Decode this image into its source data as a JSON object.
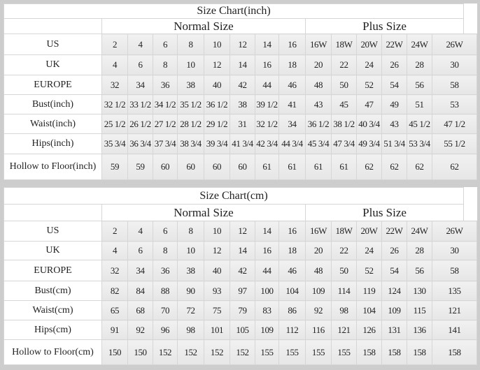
{
  "tables": [
    {
      "title": "Size Chart(inch)",
      "normal_label": "Normal Size",
      "plus_label": "Plus Size",
      "rows": [
        {
          "label": "US",
          "values": [
            "2",
            "4",
            "6",
            "8",
            "10",
            "12",
            "14",
            "16",
            "16W",
            "18W",
            "20W",
            "22W",
            "24W",
            "26W"
          ]
        },
        {
          "label": "UK",
          "values": [
            "4",
            "6",
            "8",
            "10",
            "12",
            "14",
            "16",
            "18",
            "20",
            "22",
            "24",
            "26",
            "28",
            "30"
          ]
        },
        {
          "label": "EUROPE",
          "values": [
            "32",
            "34",
            "36",
            "38",
            "40",
            "42",
            "44",
            "46",
            "48",
            "50",
            "52",
            "54",
            "56",
            "58"
          ]
        },
        {
          "label": "Bust(inch)",
          "values": [
            "32 1/2",
            "33 1/2",
            "34 1/2",
            "35 1/2",
            "36 1/2",
            "38",
            "39 1/2",
            "41",
            "43",
            "45",
            "47",
            "49",
            "51",
            "53"
          ]
        },
        {
          "label": "Waist(inch)",
          "values": [
            "25 1/2",
            "26 1/2",
            "27 1/2",
            "28 1/2",
            "29 1/2",
            "31",
            "32 1/2",
            "34",
            "36 1/2",
            "38 1/2",
            "40 3/4",
            "43",
            "45 1/2",
            "47 1/2"
          ]
        },
        {
          "label": "Hips(inch)",
          "values": [
            "35 3/4",
            "36 3/4",
            "37 3/4",
            "38 3/4",
            "39 3/4",
            "41 3/4",
            "42 3/4",
            "44 3/4",
            "45 3/4",
            "47 3/4",
            "49 3/4",
            "51 3/4",
            "53 3/4",
            "55 1/2"
          ]
        },
        {
          "label": "Hollow to Floor(inch)",
          "values": [
            "59",
            "59",
            "60",
            "60",
            "60",
            "60",
            "61",
            "61",
            "61",
            "61",
            "62",
            "62",
            "62",
            "62"
          ]
        }
      ]
    },
    {
      "title": "Size Chart(cm)",
      "normal_label": "Normal Size",
      "plus_label": "Plus Size",
      "rows": [
        {
          "label": "US",
          "values": [
            "2",
            "4",
            "6",
            "8",
            "10",
            "12",
            "14",
            "16",
            "16W",
            "18W",
            "20W",
            "22W",
            "24W",
            "26W"
          ]
        },
        {
          "label": "UK",
          "values": [
            "4",
            "6",
            "8",
            "10",
            "12",
            "14",
            "16",
            "18",
            "20",
            "22",
            "24",
            "26",
            "28",
            "30"
          ]
        },
        {
          "label": "EUROPE",
          "values": [
            "32",
            "34",
            "36",
            "38",
            "40",
            "42",
            "44",
            "46",
            "48",
            "50",
            "52",
            "54",
            "56",
            "58"
          ]
        },
        {
          "label": "Bust(cm)",
          "values": [
            "82",
            "84",
            "88",
            "90",
            "93",
            "97",
            "100",
            "104",
            "109",
            "114",
            "119",
            "124",
            "130",
            "135"
          ]
        },
        {
          "label": "Waist(cm)",
          "values": [
            "65",
            "68",
            "70",
            "72",
            "75",
            "79",
            "83",
            "86",
            "92",
            "98",
            "104",
            "109",
            "115",
            "121"
          ]
        },
        {
          "label": "Hips(cm)",
          "values": [
            "91",
            "92",
            "96",
            "98",
            "101",
            "105",
            "109",
            "112",
            "116",
            "121",
            "126",
            "131",
            "136",
            "141"
          ]
        },
        {
          "label": "Hollow to Floor(cm)",
          "values": [
            "150",
            "150",
            "152",
            "152",
            "152",
            "152",
            "155",
            "155",
            "155",
            "155",
            "158",
            "158",
            "158",
            "158"
          ]
        }
      ]
    }
  ]
}
